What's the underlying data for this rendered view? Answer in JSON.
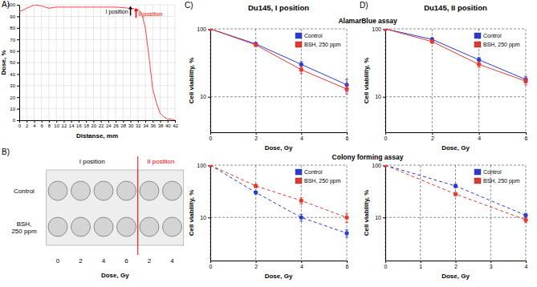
{
  "chart_data": [
    {
      "type": "line",
      "panel_label": "A)",
      "xlabel": "Distanse, mm",
      "ylabel": "Dose, %",
      "x": [
        0,
        2,
        4,
        6,
        8,
        10,
        14,
        18,
        22,
        26,
        30,
        32,
        33,
        34,
        35,
        36,
        37,
        38,
        39,
        40,
        41,
        42
      ],
      "xlim": [
        0,
        42
      ],
      "xticks": [
        0,
        2,
        4,
        6,
        8,
        10,
        12,
        14,
        16,
        18,
        20,
        22,
        24,
        26,
        28,
        30,
        32,
        34,
        36,
        38,
        40,
        42
      ],
      "ylim": [
        0,
        100
      ],
      "yticks": [
        0,
        10,
        20,
        30,
        40,
        50,
        60,
        70,
        80,
        90,
        100
      ],
      "grid": true,
      "series": [
        {
          "color": "#ff4040",
          "line_style": "solid",
          "values": [
            94,
            97,
            100,
            99,
            97,
            98,
            98,
            98,
            98,
            98,
            97,
            96,
            93,
            80,
            55,
            27,
            15,
            6,
            3,
            1,
            1,
            0
          ]
        }
      ],
      "annotations": [
        {
          "text": "I position",
          "x": 30,
          "y": 99,
          "color": "#000000"
        },
        {
          "text": "II position",
          "x": 31.5,
          "y": 97,
          "color": "#ff0000"
        }
      ]
    },
    {
      "type": "plate",
      "panel_label": "B)",
      "xlabel": "Dose, Gy",
      "rows": [
        "Control",
        "BSH, 250 ppm"
      ],
      "groups": [
        {
          "name": "I position",
          "color": "#000000",
          "columns": [
            0,
            2,
            4,
            6
          ]
        },
        {
          "name": "II position",
          "color": "#ff0000",
          "columns": [
            2,
            4
          ]
        }
      ]
    },
    {
      "type": "line",
      "panel_label": "C)",
      "title": "Du145, I position",
      "subtitle": "AlamarBlue assay",
      "xlabel": "Dose, Gy",
      "ylabel": "Cell viability, %",
      "log": "y",
      "x": [
        0,
        2,
        4,
        6
      ],
      "xlim": [
        0,
        6
      ],
      "xticks": [
        0,
        2,
        4,
        6
      ],
      "ylim": [
        3,
        100
      ],
      "yticks": [
        10,
        100
      ],
      "grid": true,
      "legend": "top-right",
      "series": [
        {
          "name": "Control",
          "color": "#2b3bd8",
          "marker": "circle",
          "line_style": "solid",
          "values": [
            100,
            60,
            30,
            15
          ],
          "errors": [
            0,
            3,
            3,
            3
          ]
        },
        {
          "name": "BSH, 250 ppm",
          "color": "#e8372f",
          "marker": "circle",
          "line_style": "solid",
          "values": [
            100,
            58,
            25,
            13
          ],
          "errors": [
            0,
            3,
            3,
            2
          ]
        }
      ]
    },
    {
      "type": "line",
      "subtitle": "Colony forming assay",
      "xlabel": "Dose, Gy",
      "ylabel": "Cell viability, %",
      "log": "y",
      "x": [
        0,
        2,
        4,
        6
      ],
      "xlim": [
        0,
        6
      ],
      "xticks": [
        0,
        2,
        4,
        6
      ],
      "ylim": [
        1.5,
        100
      ],
      "yticks": [
        10,
        100
      ],
      "grid": true,
      "legend": "top-right",
      "series": [
        {
          "name": "Control",
          "color": "#2b3bd8",
          "marker": "circle",
          "line_style": "dashed",
          "values": [
            100,
            30,
            10,
            5
          ],
          "errors": [
            0,
            2,
            1.5,
            0.8
          ]
        },
        {
          "name": "BSH, 250 ppm",
          "color": "#e8372f",
          "marker": "circle",
          "line_style": "dashed",
          "values": [
            100,
            40,
            21,
            10
          ],
          "errors": [
            0,
            3,
            3,
            2
          ]
        }
      ]
    },
    {
      "type": "line",
      "panel_label": "D)",
      "title": "Du145, II position",
      "xlabel": "Dose, Gy",
      "ylabel": "Cell viability, %",
      "log": "y",
      "x": [
        0,
        2,
        4,
        6
      ],
      "xlim": [
        0,
        6
      ],
      "xticks": [
        0,
        2,
        4,
        6
      ],
      "ylim": [
        3,
        100
      ],
      "yticks": [
        10,
        100
      ],
      "grid": true,
      "legend": "top-right",
      "series": [
        {
          "name": "Control",
          "color": "#2b3bd8",
          "marker": "circle",
          "line_style": "solid",
          "values": [
            100,
            70,
            35,
            18
          ],
          "errors": [
            0,
            4,
            3,
            2
          ]
        },
        {
          "name": "BSH, 250 ppm",
          "color": "#e8372f",
          "marker": "circle",
          "line_style": "solid",
          "values": [
            100,
            65,
            30,
            17
          ],
          "errors": [
            0,
            4,
            3,
            2
          ]
        }
      ]
    },
    {
      "type": "line",
      "xlabel": "Dose, Gy",
      "ylabel": "Cell viability, %",
      "log": "y",
      "x": [
        0,
        2,
        4
      ],
      "xlim": [
        0,
        4
      ],
      "xticks": [
        0,
        1,
        2,
        3,
        4
      ],
      "ylim": [
        1.5,
        100
      ],
      "yticks": [
        10,
        100
      ],
      "grid": true,
      "legend": "top-right",
      "series": [
        {
          "name": "Control",
          "color": "#2b3bd8",
          "marker": "circle",
          "line_style": "dashed",
          "values": [
            100,
            40,
            11
          ],
          "errors": [
            0,
            3,
            1
          ]
        },
        {
          "name": "BSH, 250 ppm",
          "color": "#e8372f",
          "marker": "circle",
          "line_style": "dashed",
          "values": [
            100,
            28,
            9
          ],
          "errors": [
            0,
            2,
            1
          ]
        }
      ]
    }
  ]
}
